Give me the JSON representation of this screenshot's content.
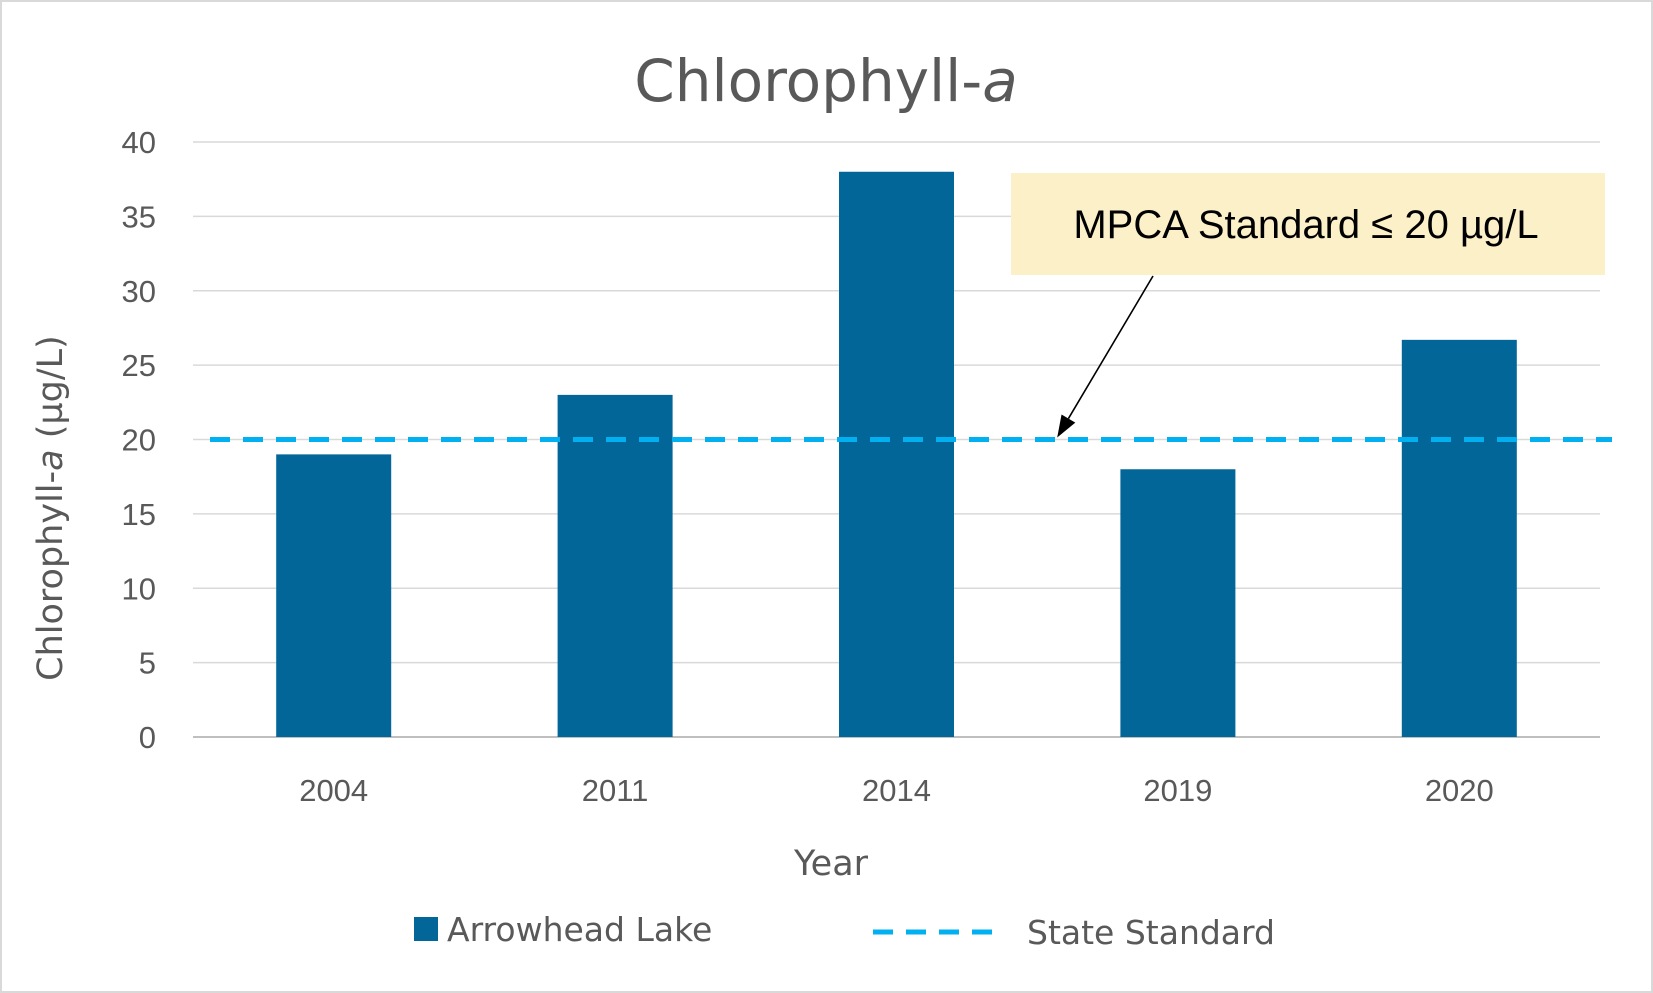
{
  "chart_data": {
    "type": "bar",
    "title": "Chlorophyll-",
    "title_italic": "a",
    "xlabel": "Year",
    "ylabel": "Chlorophyll-",
    "ylabel_italic": "a",
    "ylabel_unit": " (µg/L)",
    "categories": [
      "2004",
      "2011",
      "2014",
      "2019",
      "2020"
    ],
    "series": [
      {
        "name": "Arrowhead Lake",
        "values": [
          19,
          23,
          38,
          18,
          26.7
        ],
        "color": "#026699"
      }
    ],
    "reference_line": {
      "name": "State Standard",
      "value": 20,
      "style": "dashed",
      "color": "#00b0f0"
    },
    "annotation": {
      "text": "MPCA Standard ≤ 20 µg/L",
      "points_to": {
        "category": "2019",
        "value": 20
      },
      "background": "#fcf0c8"
    },
    "ylim": [
      0,
      40
    ],
    "yticks": [
      "0",
      "5",
      "10",
      "15",
      "20",
      "25",
      "30",
      "35",
      "40"
    ],
    "grid": true,
    "gridline_color": "#d9d9d9",
    "legend_position": "bottom"
  }
}
